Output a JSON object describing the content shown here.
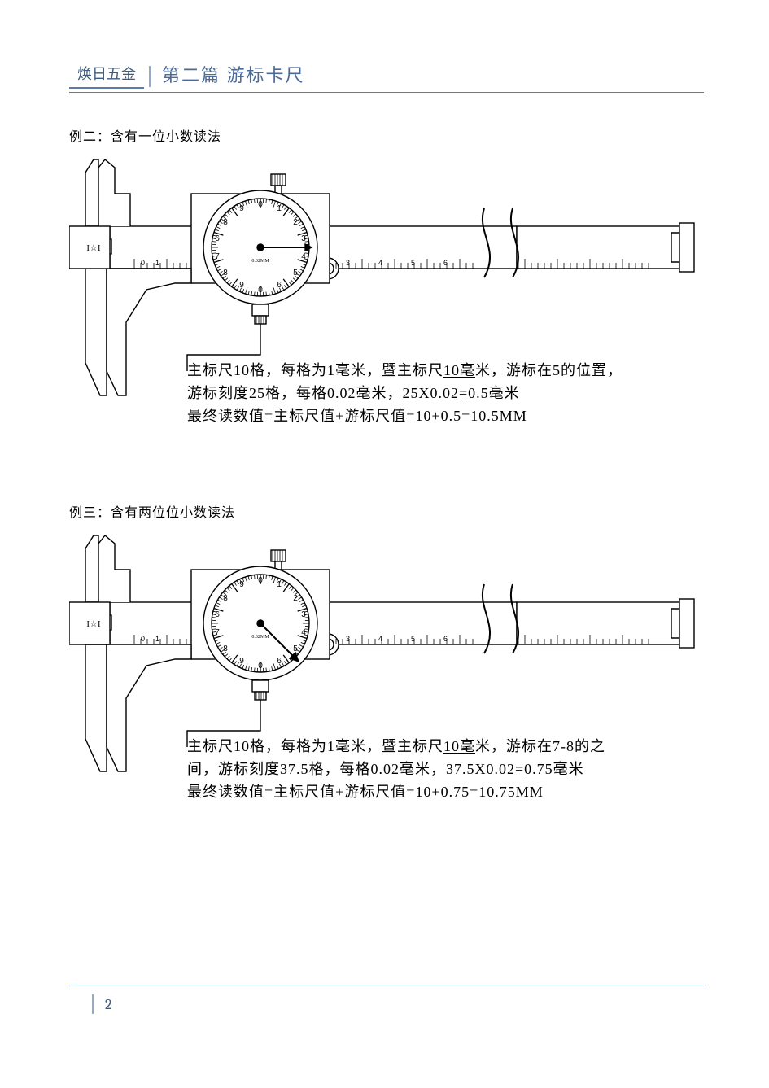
{
  "header": {
    "brand": "焕日五金",
    "chapter": "第二篇 游标卡尺"
  },
  "example2": {
    "title": "例二：含有一位小数读法",
    "annotation_line1_a": "主标尺10格，每格为1毫米，暨主标尺",
    "annotation_line1_u": "10毫",
    "annotation_line1_b": "米，游标在5的位置，",
    "annotation_line2_a": "游标刻度25格，每格0.02毫米，25X0.02=",
    "annotation_line2_u": "0.5毫",
    "annotation_line2_b": "米",
    "annotation_line3": "最终读数值=主标尺值+游标尺值=10+0.5=10.5MM"
  },
  "example3": {
    "title": "例三：含有两位位小数读法",
    "annotation_line1_a": "主标尺10格，每格为1毫米，暨主标尺",
    "annotation_line1_u": "10毫",
    "annotation_line1_b": "米，游标在7-8的之",
    "annotation_line2_a": "间，游标刻度37.5格，每格0.02毫米，37.5X0.02=",
    "annotation_line2_u": "0.75毫",
    "annotation_line2_b": "米",
    "annotation_line3": "最终读数值=主标尺值+游标尺值=10+0.75=10.75MM"
  },
  "caliper": {
    "dial_numbers": [
      "0",
      "1",
      "2",
      "3",
      "4",
      "5",
      "6",
      "7",
      "8",
      "9",
      "0",
      "1",
      "9",
      "8"
    ],
    "dial_center_text": "0.02MM",
    "label_mark": "I☆I",
    "stroke": "#000000",
    "fill": "#ffffff",
    "needle_angle_ex2": 90,
    "needle_angle_ex3": 135
  },
  "footer": {
    "page": "2"
  },
  "colors": {
    "accent": "#5b7ba8",
    "accent_light": "#95aac8",
    "text": "#000000",
    "bg": "#ffffff"
  }
}
